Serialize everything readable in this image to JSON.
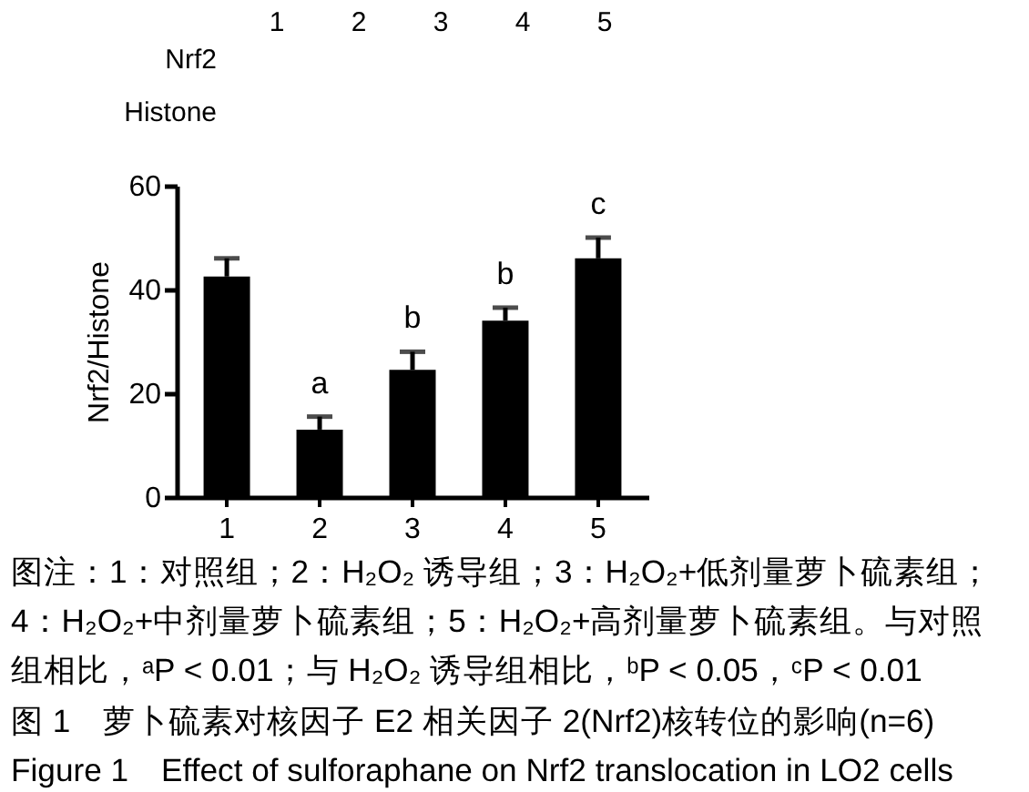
{
  "chart_data": {
    "type": "bar",
    "title": "图 1　萝卜硫素对核因子 E2 相关因子 2(Nrf2)核转位的影响(n=6)",
    "subtitle": "Figure 1　Effect of sulforaphane on Nrf2 translocation in LO2 cells",
    "ylabel": "Nrf2/Histone",
    "categories": [
      "1",
      "2",
      "3",
      "4",
      "5"
    ],
    "values": [
      42.5,
      13,
      24.5,
      34,
      46
    ],
    "errors": [
      [
        42.5,
        46
      ],
      [
        13,
        15.5
      ],
      [
        24.5,
        28
      ],
      [
        34,
        36.5
      ],
      [
        46,
        50
      ]
    ],
    "color": "#000000",
    "ylim": [
      0,
      60
    ],
    "yticks": [
      0,
      20,
      40,
      60
    ],
    "grid": false,
    "annotations": [
      "Nrf2",
      "Histone",
      {
        "text": "a",
        "x": "2",
        "y": 15.5
      },
      {
        "text": "b",
        "x": "3",
        "y": 28
      },
      {
        "text": "b",
        "x": "4",
        "y": 36.5
      },
      {
        "text": "c",
        "x": "5",
        "y": 50
      },
      "图注：1：对照组；2：H₂O₂ 诱导组；3：H₂O₂+低剂量萝卜硫素组；",
      "4：H₂O₂+中剂量萝卜硫素组；5：H₂O₂+高剂量萝卜硫素组。与对照",
      "组相比，ᵃP < 0.01；与 H₂O₂ 诱导组相比，ᵇP < 0.05，ᶜP < 0.01"
    ]
  }
}
